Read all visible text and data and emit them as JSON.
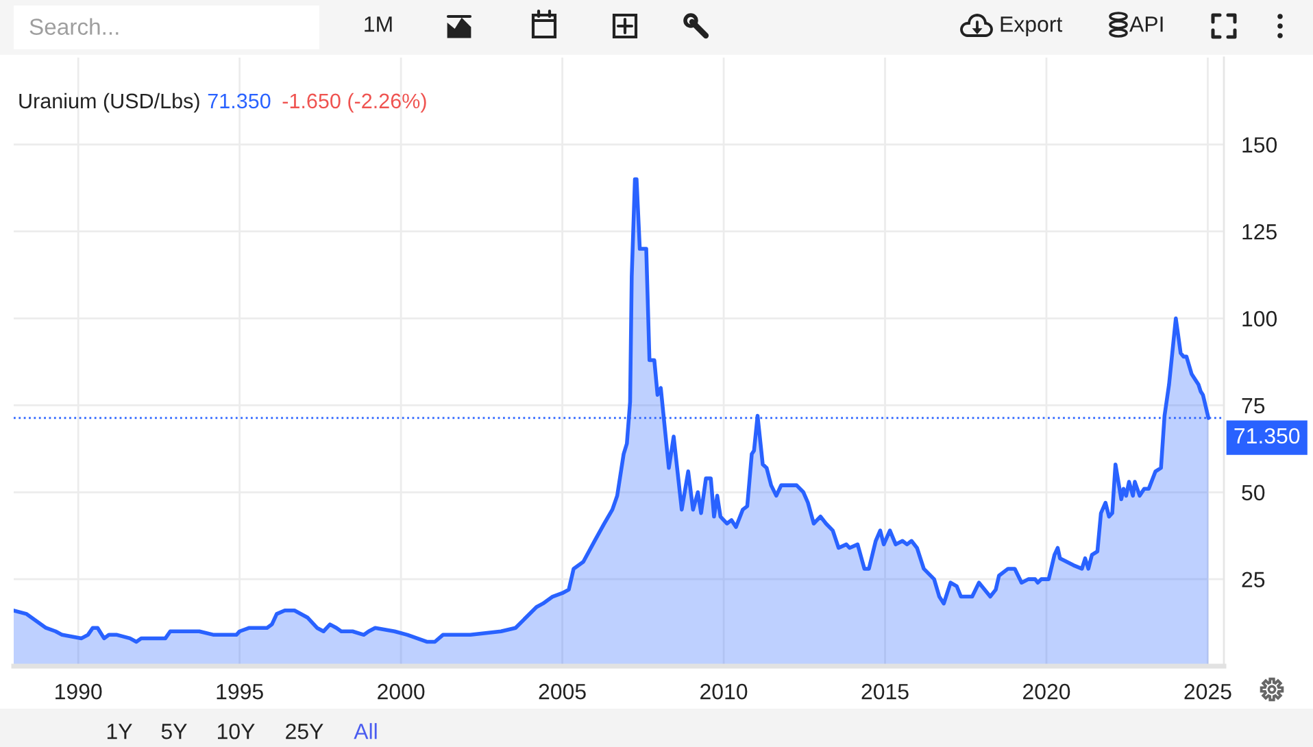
{
  "chart_data": {
    "type": "area",
    "title": "Uranium (USD/Lbs)",
    "annotations": [
      "71.350",
      "-1.650 (-2.26%)",
      "Search...",
      "1M",
      "Export",
      "API",
      "1Y",
      "5Y",
      "10Y",
      "25Y",
      "All"
    ],
    "x": [
      1988.0,
      1988.4,
      1989.0,
      1989.3,
      1989.5,
      1990.1,
      1990.3,
      1990.45,
      1990.6,
      1990.8,
      1990.95,
      1991.2,
      1991.6,
      1991.8,
      1991.95,
      1992.05,
      1992.55,
      1992.7,
      1992.85,
      1993.05,
      1993.75,
      1994.2,
      1994.9,
      1995.0,
      1995.3,
      1995.85,
      1996.0,
      1996.15,
      1996.4,
      1996.7,
      1997.1,
      1997.4,
      1997.6,
      1997.8,
      1998.0,
      1998.15,
      1998.5,
      1998.85,
      1999.0,
      1999.2,
      1999.8,
      2000.2,
      2000.8,
      2001.05,
      2001.3,
      2001.6,
      2002.15,
      2003.1,
      2003.55,
      2004.2,
      2004.4,
      2004.7,
      2005.0,
      2005.2,
      2005.35,
      2005.65,
      2006.0,
      2006.3,
      2006.55,
      2006.7,
      2006.9,
      2007.0,
      2007.1,
      2007.15,
      2007.25,
      2007.3,
      2007.4,
      2007.6,
      2007.7,
      2007.85,
      2007.95,
      2008.05,
      2008.3,
      2008.45,
      2008.7,
      2008.9,
      2009.05,
      2009.2,
      2009.3,
      2009.45,
      2009.6,
      2009.7,
      2009.8,
      2009.9,
      2010.1,
      2010.24,
      2010.38,
      2010.59,
      2010.73,
      2010.87,
      2010.94,
      2011.05,
      2011.21,
      2011.33,
      2011.47,
      2011.63,
      2011.78,
      2012.05,
      2012.26,
      2012.47,
      2012.61,
      2012.79,
      2013.0,
      2013.17,
      2013.38,
      2013.56,
      2013.8,
      2013.9,
      2014.15,
      2014.36,
      2014.5,
      2014.71,
      2014.85,
      2014.96,
      2015.15,
      2015.33,
      2015.54,
      2015.68,
      2015.82,
      2015.99,
      2016.2,
      2016.52,
      2016.68,
      2016.82,
      2017.03,
      2017.22,
      2017.35,
      2017.7,
      2017.91,
      2018.26,
      2018.43,
      2018.53,
      2018.81,
      2019.02,
      2019.23,
      2019.44,
      2019.65,
      2019.73,
      2019.84,
      2020.07,
      2020.25,
      2020.35,
      2020.42,
      2020.63,
      2020.84,
      2021.1,
      2021.2,
      2021.3,
      2021.41,
      2021.58,
      2021.69,
      2021.83,
      2021.94,
      2022.04,
      2022.14,
      2022.32,
      2022.39,
      2022.47,
      2022.56,
      2022.68,
      2022.74,
      2022.89,
      2023.03,
      2023.17,
      2023.38,
      2023.55,
      2023.66,
      2023.8,
      2024.01,
      2024.16,
      2024.25,
      2024.34,
      2024.5,
      2024.64,
      2024.71,
      2024.78,
      2024.85,
      2025.02
    ],
    "series": [
      {
        "color": "#2962ff",
        "values": [
          16,
          15,
          11,
          10,
          9,
          8,
          9,
          11,
          11,
          8,
          9,
          9,
          8,
          7,
          8,
          8,
          8,
          8,
          10,
          10,
          10,
          9,
          9,
          10,
          11,
          11,
          12,
          15,
          16,
          16,
          14,
          11,
          10,
          12,
          11,
          10,
          10,
          9,
          10,
          11,
          10,
          9,
          7,
          7,
          9,
          9,
          9,
          10,
          11,
          17,
          18,
          20,
          21,
          22,
          28,
          30,
          36,
          41,
          45,
          49,
          61,
          64,
          76,
          112,
          140,
          140,
          120,
          120,
          88,
          88,
          78,
          80,
          57,
          66,
          45,
          56,
          45,
          50,
          44,
          54,
          54,
          43,
          49,
          43,
          41,
          42,
          40,
          45,
          46,
          61,
          62,
          72,
          58,
          57,
          52,
          49,
          52,
          52,
          52,
          50,
          47,
          41,
          43,
          41,
          39,
          34,
          35,
          34,
          35,
          28,
          28,
          36,
          39,
          35,
          39,
          35,
          36,
          35,
          36,
          34,
          28,
          25,
          20,
          18,
          24,
          23,
          20,
          20,
          24,
          20,
          22,
          26,
          28,
          28,
          24,
          25,
          25,
          24,
          25,
          25,
          32,
          34,
          31,
          30,
          29,
          28,
          31,
          28,
          32,
          33,
          44,
          47,
          43,
          44,
          58,
          48,
          51,
          49,
          53,
          49,
          53,
          49,
          51,
          51,
          56,
          57,
          72,
          81,
          100,
          90,
          89,
          89,
          84,
          82,
          81,
          79,
          78,
          71.35
        ]
      }
    ],
    "xlim": [
      1988,
      2025.5
    ],
    "xticks": [
      1990,
      1995,
      2000,
      2005,
      2010,
      2015,
      2020,
      2025
    ],
    "ylim": [
      0,
      175
    ],
    "yticks": [
      25,
      50,
      75,
      100,
      125,
      150
    ],
    "grid": true,
    "ref_lines": [
      {
        "axis": "y",
        "value": 71.35,
        "label": "71.350",
        "color": "#2962ff",
        "line_style": "dotted"
      }
    ]
  }
}
